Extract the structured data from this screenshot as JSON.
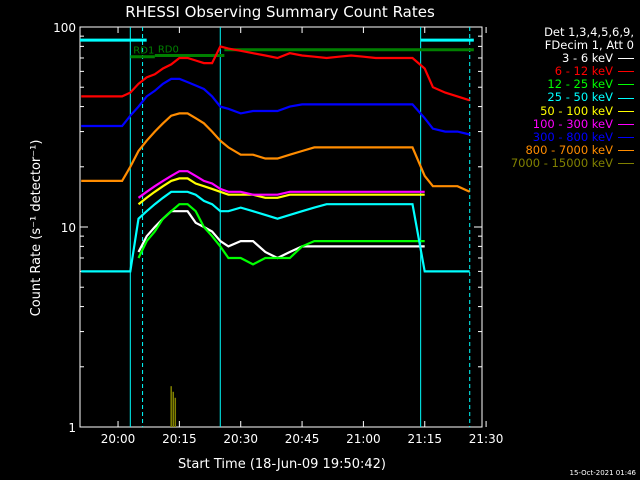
{
  "chart_data": {
    "type": "line",
    "title": "RHESSI Observing Summary Count Rates",
    "xlabel": "Start Time (18-Jun-09 19:50:42)",
    "ylabel": "Count Rate (s⁻¹ detector⁻¹)",
    "y_scale": "log",
    "ylim": [
      1,
      100
    ],
    "xlim": [
      "19:50:42",
      "21:29:00"
    ],
    "x_ticks": [
      "20:00",
      "20:15",
      "20:30",
      "20:45",
      "21:00",
      "21:15",
      "21:30"
    ],
    "y_ticks": [
      "1",
      "10",
      "100"
    ],
    "legend_header": [
      "Det 1,3,4,5,6,9,",
      "FDecim 1, Att 0"
    ],
    "legend_placement": "right",
    "timestamp": "15-Oct-2021 01:46",
    "markers": [
      {
        "label": "RD1",
        "start": "20:03",
        "end": "20:09",
        "level": 71
      },
      {
        "label": "RD0",
        "start": "20:09",
        "end": "20:26",
        "level": 72
      },
      {
        "label": "",
        "start": "20:26",
        "end": "21:27",
        "level": 77
      },
      {
        "label": "",
        "start": "19:50:42",
        "end": "20:07",
        "level": 86
      },
      {
        "label": "",
        "start": "21:14",
        "end": "21:27",
        "level": 86
      }
    ],
    "vlines_solid": [
      "20:03",
      "20:25",
      "21:14"
    ],
    "vlines_dashed": [
      "20:06",
      "21:26"
    ],
    "x": [
      "19:51",
      "19:55",
      "19:59",
      "20:01",
      "20:03",
      "20:05",
      "20:07",
      "20:09",
      "20:11",
      "20:13",
      "20:15",
      "20:17",
      "20:19",
      "20:21",
      "20:23",
      "20:25",
      "20:27",
      "20:30",
      "20:33",
      "20:36",
      "20:39",
      "20:42",
      "20:45",
      "20:48",
      "20:51",
      "20:54",
      "20:57",
      "21:00",
      "21:03",
      "21:06",
      "21:09",
      "21:12",
      "21:15",
      "21:17",
      "21:20",
      "21:23",
      "21:26"
    ],
    "series": [
      {
        "name": "3 - 6 keV",
        "color": "#ffffff",
        "values": [
          null,
          null,
          null,
          null,
          null,
          7.5,
          9,
          10,
          11,
          12,
          12,
          12,
          10.5,
          10,
          9.5,
          8.5,
          8,
          8.5,
          8.5,
          7.5,
          7,
          7.5,
          8,
          8,
          8,
          8,
          8,
          8,
          8,
          8,
          8,
          8,
          8,
          null,
          null,
          null,
          null
        ]
      },
      {
        "name": "6 - 12 keV",
        "color": "#ff0000",
        "values": [
          45,
          45,
          45,
          45,
          47,
          52,
          56,
          58,
          62,
          65,
          70,
          70,
          68,
          66,
          66,
          80,
          78,
          76,
          74,
          72,
          70,
          74,
          72,
          71,
          70,
          71,
          72,
          71,
          70,
          70,
          70,
          70,
          62,
          50,
          47,
          45,
          43
        ]
      },
      {
        "name": "12 - 25 keV",
        "color": "#00ff00",
        "values": [
          null,
          null,
          null,
          null,
          null,
          7,
          8.5,
          9.5,
          11,
          12,
          13,
          13,
          12,
          10,
          9,
          8,
          7,
          7,
          6.5,
          7,
          7,
          7,
          8,
          8.5,
          8.5,
          8.5,
          8.5,
          8.5,
          8.5,
          8.5,
          8.5,
          8.5,
          8.5,
          null,
          null,
          null,
          null
        ]
      },
      {
        "name": "25 - 50 keV",
        "color": "#00ffff",
        "values": [
          6,
          6,
          6,
          6,
          6,
          11,
          12,
          13,
          14,
          15,
          15,
          15,
          14.5,
          13.5,
          13,
          12,
          12,
          12.5,
          12,
          11.5,
          11,
          11.5,
          12,
          12.5,
          13,
          13,
          13,
          13,
          13,
          13,
          13,
          13,
          6,
          6,
          6,
          6,
          6
        ]
      },
      {
        "name": "50 - 100 keV",
        "color": "#ffff00",
        "values": [
          null,
          null,
          null,
          null,
          null,
          13,
          14,
          15,
          16,
          17,
          17.5,
          17.5,
          16.5,
          16,
          15.5,
          15,
          14.5,
          14.5,
          14.5,
          14,
          14,
          14.5,
          14.5,
          14.5,
          14.5,
          14.5,
          14.5,
          14.5,
          14.5,
          14.5,
          14.5,
          14.5,
          14.5,
          null,
          null,
          null,
          null
        ]
      },
      {
        "name": "100 - 300 keV",
        "color": "#ff00ff",
        "values": [
          null,
          null,
          null,
          null,
          null,
          14,
          15,
          16,
          17,
          18,
          19,
          19,
          18,
          17,
          16.5,
          15.5,
          15,
          15,
          14.5,
          14.5,
          14.5,
          15,
          15,
          15,
          15,
          15,
          15,
          15,
          15,
          15,
          15,
          15,
          15,
          null,
          null,
          null,
          null
        ]
      },
      {
        "name": "300 - 800 keV",
        "color": "#0000ff",
        "values": [
          32,
          32,
          32,
          32,
          36,
          40,
          45,
          48,
          52,
          55,
          55,
          53,
          51,
          49,
          45,
          40,
          39,
          37,
          38,
          38,
          38,
          40,
          41,
          41,
          41,
          41,
          41,
          41,
          41,
          41,
          41,
          41,
          35,
          31,
          30,
          30,
          29
        ]
      },
      {
        "name": "800 - 7000 keV",
        "color": "#ff8c00",
        "values": [
          17,
          17,
          17,
          17,
          20,
          24,
          27,
          30,
          33,
          36,
          37,
          37,
          35,
          33,
          30,
          27,
          25,
          23,
          23,
          22,
          22,
          23,
          24,
          25,
          25,
          25,
          25,
          25,
          25,
          25,
          25,
          25,
          18,
          16,
          16,
          16,
          15
        ]
      },
      {
        "name": "7000 - 15000 keV",
        "color": "#808000",
        "values": [
          null,
          null,
          null,
          null,
          null,
          null,
          null,
          null,
          null,
          null,
          null,
          null,
          null,
          null,
          null,
          null,
          null,
          null,
          null,
          null,
          null,
          null,
          null,
          null,
          null,
          null,
          null,
          null,
          null,
          null,
          null,
          null,
          null,
          null,
          null,
          null,
          null
        ]
      }
    ],
    "olive_spikes": [
      {
        "x": "20:13",
        "value": 1.6
      },
      {
        "x": "20:13:30",
        "value": 1.5
      },
      {
        "x": "20:14",
        "value": 1.4
      }
    ]
  }
}
